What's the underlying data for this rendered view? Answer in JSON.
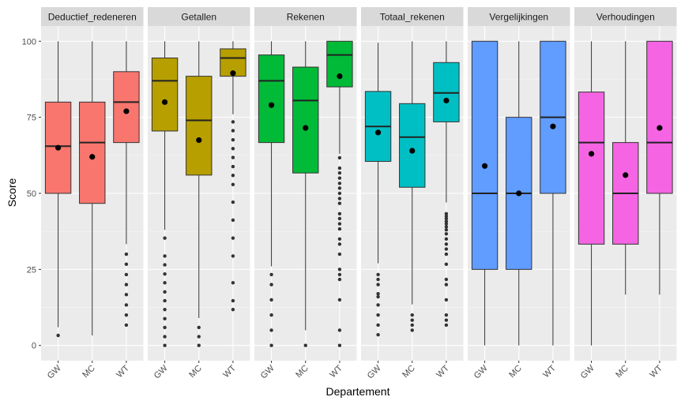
{
  "chart_data": {
    "type": "boxplot",
    "xlabel": "Departement",
    "ylabel": "Score",
    "ylim": [
      -5,
      105
    ],
    "yticks": [
      0,
      25,
      50,
      75,
      100
    ],
    "categories": [
      "GW",
      "MC",
      "WT"
    ],
    "panels": [
      {
        "name": "Deductief_redeneren",
        "color": "#F8766D",
        "boxes": [
          {
            "cat": "GW",
            "whisker_low": 6,
            "q1": 50,
            "median": 65.5,
            "q3": 80,
            "whisker_high": 100,
            "mean": 65,
            "outliers": [
              3.3
            ]
          },
          {
            "cat": "MC",
            "whisker_low": 3.3,
            "q1": 46.7,
            "median": 66.7,
            "q3": 80,
            "whisker_high": 100,
            "mean": 62,
            "outliers": []
          },
          {
            "cat": "WT",
            "whisker_low": 33.3,
            "q1": 66.7,
            "median": 80,
            "q3": 90,
            "whisker_high": 100,
            "mean": 77,
            "outliers": [
              30,
              26.7,
              23.3,
              20,
              16.7,
              13.3,
              10,
              6.7
            ]
          }
        ]
      },
      {
        "name": "Getallen",
        "color": "#B79F00",
        "boxes": [
          {
            "cat": "GW",
            "whisker_low": 38,
            "q1": 70.5,
            "median": 87,
            "q3": 94.5,
            "whisker_high": 100,
            "mean": 80,
            "outliers": [
              35.3,
              29.4,
              26.5,
              23.5,
              20.6,
              17.6,
              14.7,
              11.8,
              8.8,
              5.9,
              2.9,
              0
            ]
          },
          {
            "cat": "MC",
            "whisker_low": 9,
            "q1": 56,
            "median": 74,
            "q3": 88.5,
            "whisker_high": 100,
            "mean": 67.5,
            "outliers": [
              5.9,
              2.9,
              0
            ]
          },
          {
            "cat": "WT",
            "whisker_low": 76,
            "q1": 88.5,
            "median": 94.5,
            "q3": 97.5,
            "whisker_high": 100,
            "mean": 89.5,
            "outliers": [
              73.5,
              70.6,
              67.6,
              64.7,
              61.8,
              58.8,
              55.9,
              52.9,
              47.1,
              41.2,
              35.3,
              29.4,
              20.6,
              14.7,
              11.8
            ]
          }
        ]
      },
      {
        "name": "Rekenen",
        "color": "#00BA38",
        "boxes": [
          {
            "cat": "GW",
            "whisker_low": 26,
            "q1": 66.7,
            "median": 87,
            "q3": 95.5,
            "whisker_high": 100,
            "mean": 79,
            "outliers": [
              23.3,
              20,
              15,
              10,
              5,
              0
            ]
          },
          {
            "cat": "MC",
            "whisker_low": 5,
            "q1": 56.7,
            "median": 80.5,
            "q3": 91.5,
            "whisker_high": 100,
            "mean": 71.5,
            "outliers": [
              0
            ]
          },
          {
            "cat": "WT",
            "whisker_low": 63,
            "q1": 85,
            "median": 95.5,
            "q3": 100,
            "whisker_high": 100,
            "mean": 88.5,
            "outliers": [
              61.7,
              58.3,
              56.7,
              55,
              53.3,
              51.7,
              50,
              48.3,
              46.7,
              43.3,
              41.7,
              40,
              38.3,
              35,
              33.3,
              30,
              25,
              23.3,
              21.7,
              15,
              5,
              0
            ]
          }
        ]
      },
      {
        "name": "Totaal_rekenen",
        "color": "#00BFC4",
        "boxes": [
          {
            "cat": "GW",
            "whisker_low": 27,
            "q1": 60.5,
            "median": 72,
            "q3": 83.5,
            "whisker_high": 99.5,
            "mean": 70,
            "outliers": [
              23.3,
              21.7,
              20,
              17,
              16,
              13.3,
              10,
              6.7,
              3.5
            ]
          },
          {
            "cat": "MC",
            "whisker_low": 13.5,
            "q1": 52,
            "median": 68.5,
            "q3": 79.5,
            "whisker_high": 100,
            "mean": 64,
            "outliers": [
              10,
              8.3,
              6.7,
              5
            ]
          },
          {
            "cat": "WT",
            "whisker_low": 47,
            "q1": 73.5,
            "median": 83,
            "q3": 93,
            "whisker_high": 100,
            "mean": 80.5,
            "outliers": [
              43.3,
              42.5,
              41.7,
              40.8,
              40,
              39,
              38,
              36.7,
              35,
              33.3,
              31.7,
              30,
              26.7,
              21.7,
              20,
              15,
              10,
              8.3,
              6.7
            ]
          }
        ]
      },
      {
        "name": "Vergelijkingen",
        "color": "#619CFF",
        "boxes": [
          {
            "cat": "GW",
            "whisker_low": 0,
            "q1": 25,
            "median": 50,
            "q3": 100,
            "whisker_high": 100,
            "mean": 59,
            "outliers": []
          },
          {
            "cat": "MC",
            "whisker_low": 0,
            "q1": 25,
            "median": 50,
            "q3": 75,
            "whisker_high": 100,
            "mean": 50,
            "outliers": []
          },
          {
            "cat": "WT",
            "whisker_low": 0,
            "q1": 50,
            "median": 75,
            "q3": 100,
            "whisker_high": 100,
            "mean": 72,
            "outliers": []
          }
        ]
      },
      {
        "name": "Verhoudingen",
        "color": "#F564E3",
        "boxes": [
          {
            "cat": "GW",
            "whisker_low": 0,
            "q1": 33.3,
            "median": 66.7,
            "q3": 83.3,
            "whisker_high": 100,
            "mean": 63,
            "outliers": []
          },
          {
            "cat": "MC",
            "whisker_low": 16.7,
            "q1": 33.3,
            "median": 50,
            "q3": 66.7,
            "whisker_high": 100,
            "mean": 56,
            "outliers": []
          },
          {
            "cat": "WT",
            "whisker_low": 16.7,
            "q1": 50,
            "median": 66.7,
            "q3": 100,
            "whisker_high": 100,
            "mean": 71.5,
            "outliers": []
          }
        ]
      }
    ]
  }
}
